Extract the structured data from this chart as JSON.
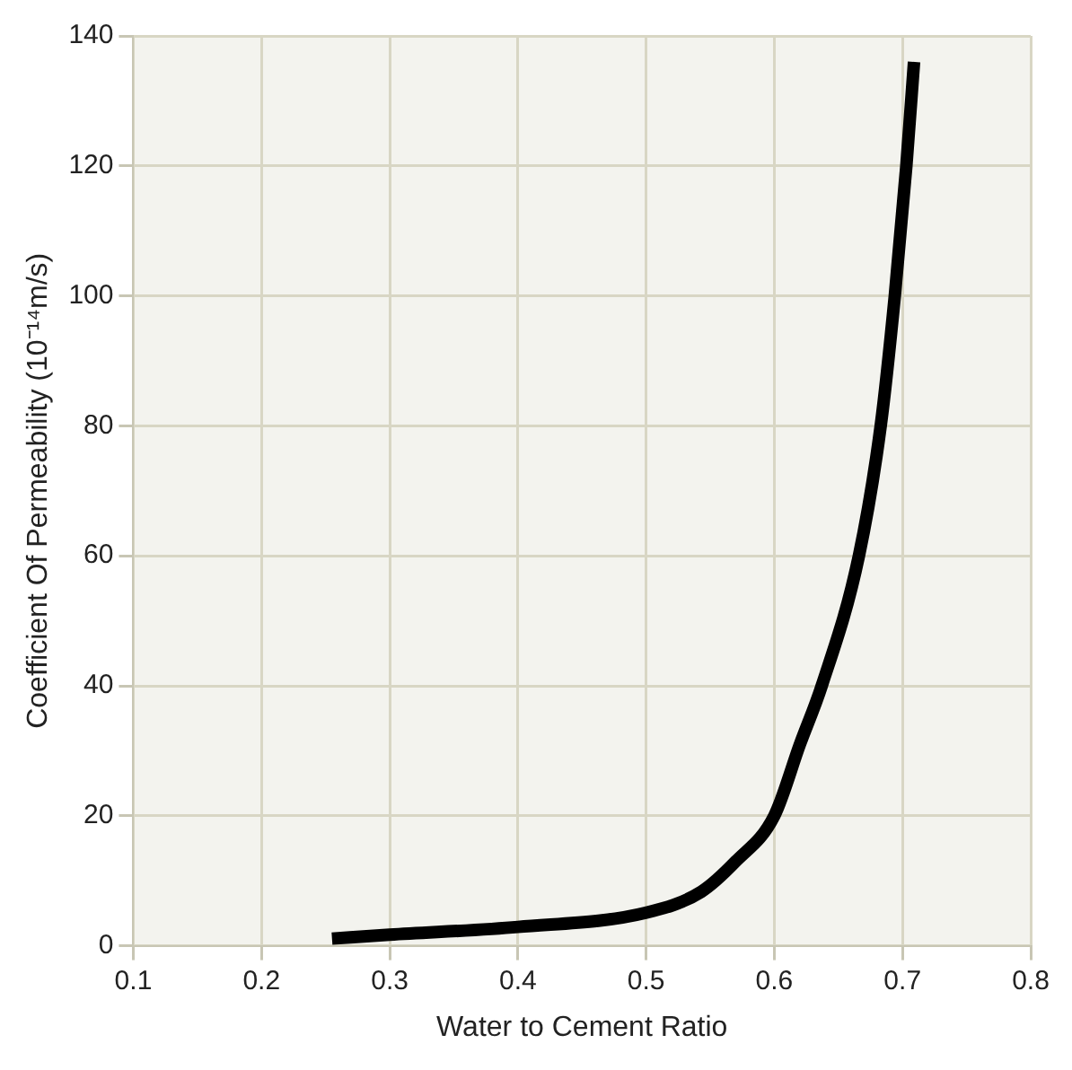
{
  "chart_data": {
    "type": "line",
    "xlabel": "Water to Cement Ratio",
    "ylabel": "Coefficient Of Permeability (10⁻¹⁴m/s)",
    "x": [
      0.255,
      0.3,
      0.4,
      0.5,
      0.543,
      0.57,
      0.6,
      0.62,
      0.637,
      0.666,
      0.683,
      0.694,
      0.703,
      0.709
    ],
    "series": [
      {
        "color": "#000000",
        "values": [
          1.1,
          1.7,
          2.9,
          5.1,
          8.3,
          13,
          20,
          31,
          40,
          60,
          80,
          100,
          120,
          136
        ]
      }
    ],
    "xlim": [
      0.1,
      0.8
    ],
    "xticks": [
      0.1,
      0.2,
      0.3,
      0.4,
      0.5,
      0.6,
      0.7,
      0.8
    ],
    "ylim": [
      0,
      140
    ],
    "yticks": [
      0,
      20,
      40,
      60,
      80,
      100,
      120,
      140
    ],
    "grid": true,
    "legend": false,
    "marker": "none",
    "line_style": "solid"
  }
}
